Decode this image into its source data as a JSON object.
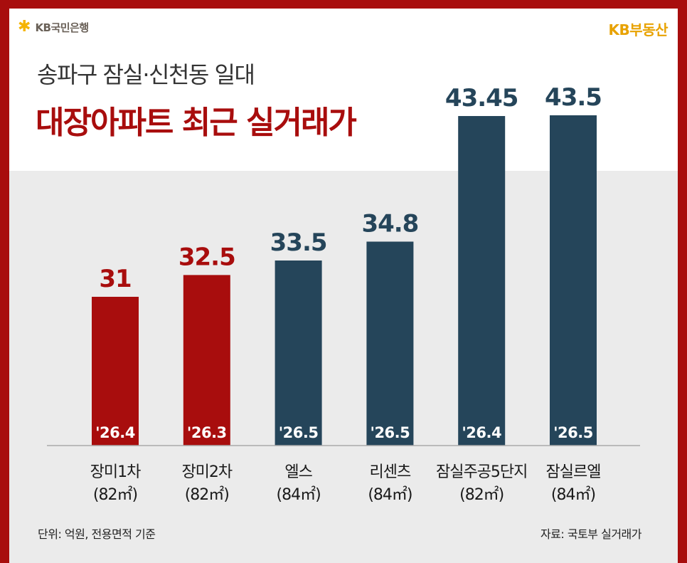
{
  "header": {
    "bank_name": "KB국민은행",
    "brand": "KB부동산",
    "subtitle": "송파구 잠실·신천동 일대",
    "title": "대장아파트 최근 실거래가"
  },
  "colors": {
    "red": "#a80d0d",
    "navy": "#25455a",
    "gold": "#e8a200"
  },
  "chart_data": {
    "type": "bar",
    "categories": [
      "장미1차",
      "장미2차",
      "엘스",
      "리센츠",
      "잠실주공5단지",
      "잠실르엘"
    ],
    "sizes": [
      "(82㎡)",
      "(82㎡)",
      "(84㎡)",
      "(84㎡)",
      "(82㎡)",
      "(84㎡)"
    ],
    "values": [
      31,
      32.5,
      33.5,
      34.8,
      43.45,
      43.5
    ],
    "value_labels": [
      "31",
      "32.5",
      "33.5",
      "34.8",
      "43.45",
      "43.5"
    ],
    "dates": [
      "'26.4",
      "'26.3",
      "'26.5",
      "'26.5",
      "'26.4",
      "'26.5"
    ],
    "bar_colors": [
      "#a80d0d",
      "#a80d0d",
      "#25455a",
      "#25455a",
      "#25455a",
      "#25455a"
    ]
  },
  "footer": {
    "unit": "단위: 억원, 전용면적 기준",
    "source": "자료: 국토부 실거래가"
  }
}
